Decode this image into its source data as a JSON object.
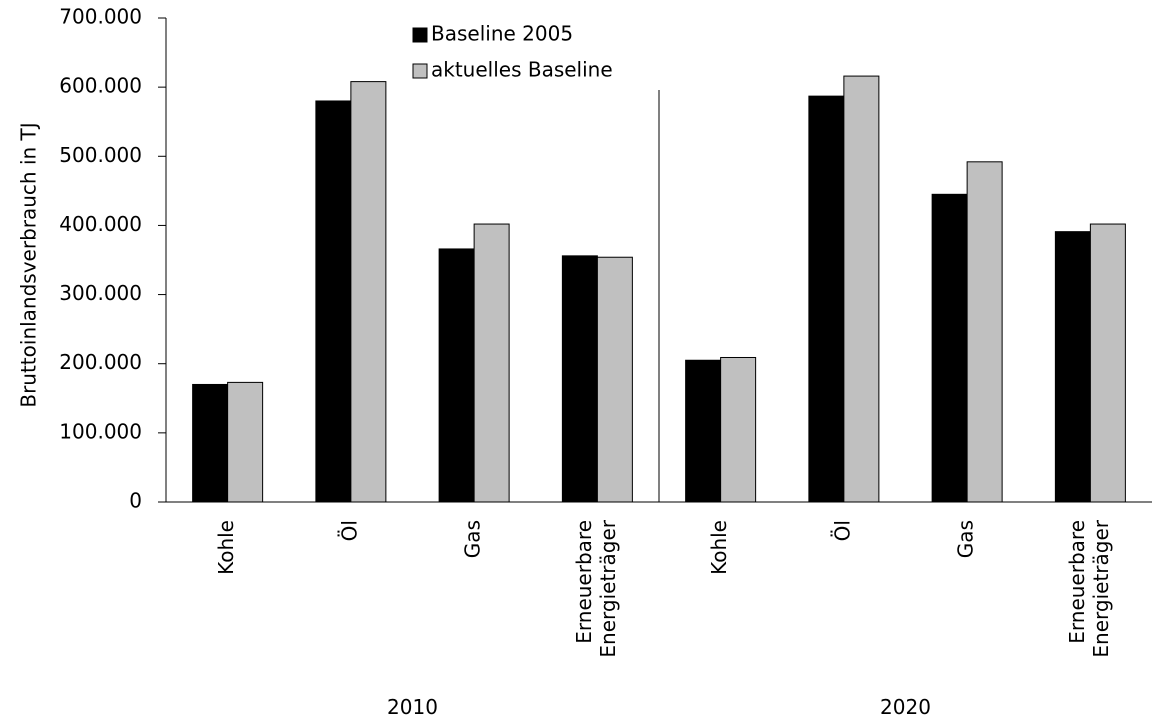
{
  "chart_data": {
    "type": "bar",
    "title": "",
    "ylabel": "Bruttoinlandsverbrauch in TJ",
    "xlabel": "",
    "ylim": [
      0,
      700000
    ],
    "yticks": [
      0,
      100000,
      200000,
      300000,
      400000,
      500000,
      600000,
      700000
    ],
    "ytick_labels": [
      "0",
      "100.000",
      "200.000",
      "300.000",
      "400.000",
      "500.000",
      "600.000",
      "700.000"
    ],
    "groups": [
      {
        "label": "2010",
        "categories": [
          [
            "Kohle"
          ],
          [
            "Öl"
          ],
          [
            "Gas"
          ],
          [
            "Erneuerbare",
            "Energieträger"
          ]
        ]
      },
      {
        "label": "2020",
        "categories": [
          [
            "Kohle"
          ],
          [
            "Öl"
          ],
          [
            "Gas"
          ],
          [
            "Erneuerbare",
            "Energieträger"
          ]
        ]
      }
    ],
    "series": [
      {
        "name": "Baseline 2005",
        "color": "#000000",
        "values": [
          170000,
          580000,
          366000,
          356000,
          205000,
          587000,
          445000,
          391000
        ]
      },
      {
        "name": "aktuelles Baseline",
        "color": "#c0c0c0",
        "values": [
          173000,
          608000,
          402000,
          354000,
          209000,
          616000,
          492000,
          402000
        ]
      }
    ],
    "legend_position": "top-center",
    "grid": false
  }
}
